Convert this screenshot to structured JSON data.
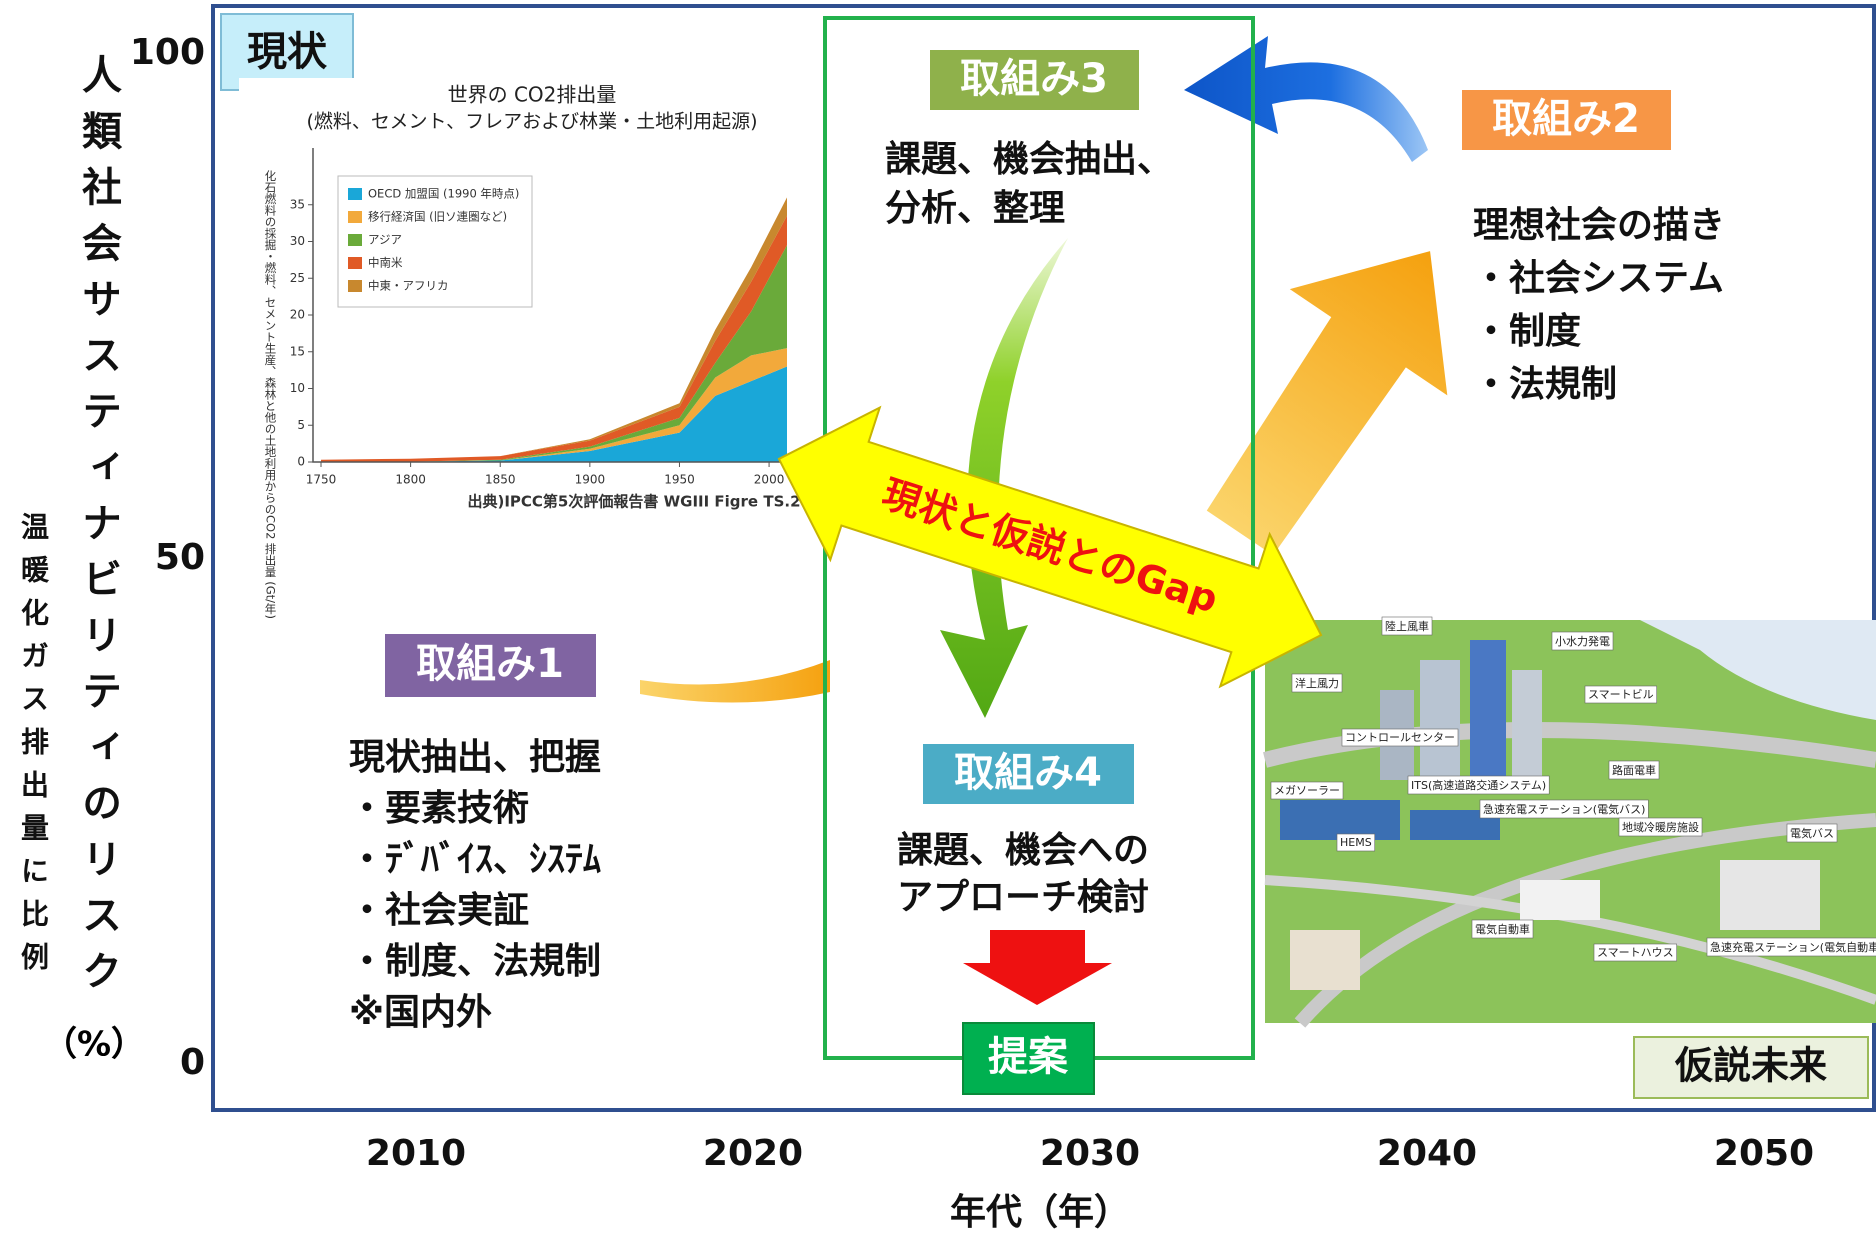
{
  "axis": {
    "title": "人類社会サスティナビリティのリスク",
    "unit": "（%）",
    "subtitle": "温暖化ガス排出量に比例",
    "yticks": [
      0,
      50,
      100
    ],
    "xticks": [
      2010,
      2020,
      2030,
      2040,
      2050
    ],
    "xlabel": "年代（年）"
  },
  "current": {
    "label": "現状"
  },
  "co2_chart": {
    "type": "area",
    "title": "世界の CO2排出量",
    "subtitle": "(燃料、セメント、フレアおよび林業・土地利用起源)",
    "ylabel": "化石燃料の採掘・燃料、セメント生産、森林と他の土地利用からのCO2 排出量 (Gt/年)",
    "x": [
      1750,
      1800,
      1850,
      1900,
      1950,
      1970,
      1990,
      2010
    ],
    "series": [
      {
        "name": "OECD 加盟国 (1990 年時点)",
        "color": "#1aa7d8",
        "values": [
          0,
          0.05,
          0.2,
          1.5,
          4,
          9,
          11,
          13
        ]
      },
      {
        "name": "移行経済国 (旧ソ連圏など)",
        "color": "#f2a93b",
        "values": [
          0,
          0,
          0,
          0.3,
          1,
          2.5,
          3.5,
          2.5
        ]
      },
      {
        "name": "アジア",
        "color": "#6aaa3a",
        "values": [
          0,
          0,
          0.1,
          0.3,
          1,
          2,
          6,
          14
        ]
      },
      {
        "name": "中南米",
        "color": "#e05a26",
        "values": [
          0.3,
          0.4,
          0.5,
          0.8,
          1.5,
          3,
          4,
          4
        ]
      },
      {
        "name": "中東・アフリカ",
        "color": "#c8882e",
        "values": [
          0,
          0,
          0,
          0.2,
          0.5,
          1.5,
          2,
          2.5
        ]
      }
    ],
    "xlim": [
      1750,
      2010
    ],
    "ylim": [
      0,
      40
    ],
    "xticks": [
      1750,
      1800,
      1850,
      1900,
      1950,
      2000
    ],
    "yticks": [
      0,
      5,
      10,
      15,
      20,
      25,
      30,
      35
    ],
    "source": "出典)IPCC第5次評価報告書 WGIII Figre TS.2"
  },
  "step1": {
    "label": "取組み1",
    "lines": [
      "現状抽出、把握",
      "・要素技術",
      "・ﾃﾞﾊﾞｲｽ、ｼｽﾃﾑ",
      "・社会実証",
      "・制度、法規制",
      "※国内外"
    ]
  },
  "step2": {
    "label": "取組み2",
    "lines": [
      "理想社会の描き",
      "・社会システム",
      "・制度",
      "・法規制"
    ]
  },
  "step3": {
    "label": "取組み3",
    "lines": [
      "課題、機会抽出、",
      "分析、整理"
    ]
  },
  "step4": {
    "label": "取組み4",
    "lines": [
      "課題、機会への",
      "アプローチ検討"
    ]
  },
  "gap": "現状と仮説とのGap",
  "proposal": "提案",
  "future": {
    "label": "仮説未来",
    "map_labels": [
      "陸上風車",
      "小水力発電",
      "洋上風力",
      "スマートビル",
      "コントロールセンター",
      "路面電車",
      "メガソーラー",
      "ITS(高速道路交通システム)",
      "急速充電ステーション(電気バス)",
      "地域冷暖房施設",
      "電気バス",
      "HEMS",
      "電気自動車",
      "スマートハウス",
      "急速充電ステーション(電気自動車)"
    ]
  }
}
